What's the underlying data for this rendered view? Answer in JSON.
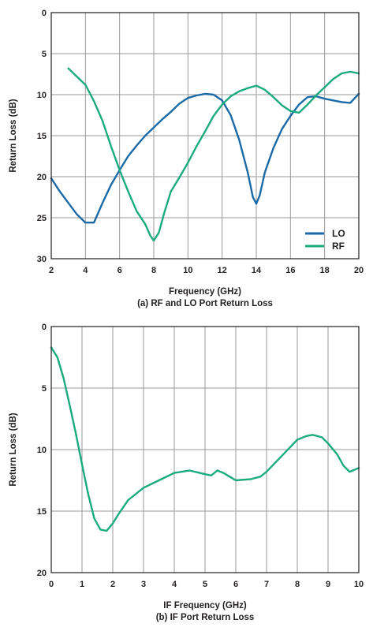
{
  "chart_data": [
    {
      "type": "line",
      "caption": "(a) RF and LO Port Return Loss",
      "xlabel": "Frequency (GHz)",
      "ylabel": "Return Loss (dB)",
      "xlim": [
        2,
        20
      ],
      "ylim": [
        0,
        30
      ],
      "y_inverted": true,
      "x_ticks": [
        2,
        4,
        6,
        8,
        10,
        12,
        14,
        16,
        18,
        20
      ],
      "y_ticks": [
        0,
        5,
        10,
        15,
        20,
        25,
        30
      ],
      "grid": true,
      "legend_position": "bottom-right",
      "series": [
        {
          "name": "LO",
          "color": "#1b6aa8",
          "x": [
            2,
            2.5,
            3,
            3.5,
            4,
            4.5,
            5,
            5.5,
            6,
            6.5,
            7,
            7.5,
            8,
            8.5,
            9,
            9.5,
            10,
            10.5,
            11,
            11.5,
            12,
            12.5,
            13,
            13.5,
            13.8,
            14,
            14.2,
            14.5,
            15,
            15.5,
            16,
            16.5,
            17,
            17.5,
            18,
            18.5,
            19,
            19.5,
            20
          ],
          "y": [
            20.2,
            21.8,
            23.2,
            24.6,
            25.6,
            25.6,
            23.2,
            21,
            19.2,
            17.5,
            16.2,
            15,
            14,
            13,
            12.1,
            11.1,
            10.4,
            10.1,
            9.9,
            10,
            10.7,
            12.5,
            15.5,
            19.5,
            22.5,
            23.3,
            22.3,
            19.5,
            16.5,
            14.2,
            12.6,
            11.2,
            10.3,
            10.2,
            10.5,
            10.7,
            10.9,
            11,
            9.9
          ]
        },
        {
          "name": "RF",
          "color": "#1aab7e",
          "x": [
            3,
            3.5,
            4,
            4.5,
            5,
            5.5,
            6,
            6.5,
            7,
            7.5,
            7.8,
            8,
            8.3,
            8.6,
            9,
            9.5,
            10,
            10.5,
            11,
            11.5,
            12,
            12.5,
            13,
            13.5,
            14,
            14.5,
            15,
            15.5,
            16,
            16.5,
            17,
            17.5,
            18,
            18.5,
            19,
            19.5,
            20
          ],
          "y": [
            6.8,
            7.8,
            8.8,
            10.8,
            13.2,
            16.3,
            19.2,
            21.8,
            24.2,
            25.8,
            27.2,
            27.8,
            26.8,
            24.5,
            21.8,
            20.1,
            18.3,
            16.3,
            14.5,
            12.6,
            11.2,
            10.2,
            9.6,
            9.2,
            8.9,
            9.4,
            10.3,
            11.3,
            12,
            12.2,
            11.2,
            10.1,
            9.1,
            8.1,
            7.4,
            7.2,
            7.4
          ]
        }
      ]
    },
    {
      "type": "line",
      "caption": "(b) IF Port Return Loss",
      "xlabel": "IF Frequency (GHz)",
      "ylabel": "Return Loss (dB)",
      "xlim": [
        0,
        10
      ],
      "ylim": [
        0,
        20
      ],
      "y_inverted": true,
      "x_ticks": [
        0,
        1,
        2,
        3,
        4,
        5,
        6,
        7,
        8,
        9,
        10
      ],
      "y_ticks": [
        0,
        5,
        10,
        15,
        20
      ],
      "grid": true,
      "series": [
        {
          "color": "#1aab7e",
          "x": [
            0,
            0.2,
            0.4,
            0.6,
            0.8,
            1,
            1.2,
            1.4,
            1.6,
            1.8,
            2,
            2.2,
            2.5,
            3,
            3.5,
            4,
            4.5,
            5,
            5.2,
            5.4,
            5.6,
            5.8,
            6,
            6.5,
            6.8,
            7,
            7.5,
            8,
            8.3,
            8.5,
            8.8,
            9,
            9.3,
            9.5,
            9.7,
            10
          ],
          "y": [
            1.7,
            2.5,
            4.2,
            6.4,
            8.7,
            11.2,
            13.6,
            15.6,
            16.5,
            16.6,
            16,
            15.2,
            14.1,
            13.1,
            12.5,
            11.9,
            11.7,
            12,
            12.1,
            11.7,
            11.9,
            12.2,
            12.5,
            12.4,
            12.2,
            11.8,
            10.5,
            9.2,
            8.9,
            8.8,
            9,
            9.5,
            10.4,
            11.3,
            11.8,
            11.5
          ]
        }
      ]
    }
  ]
}
